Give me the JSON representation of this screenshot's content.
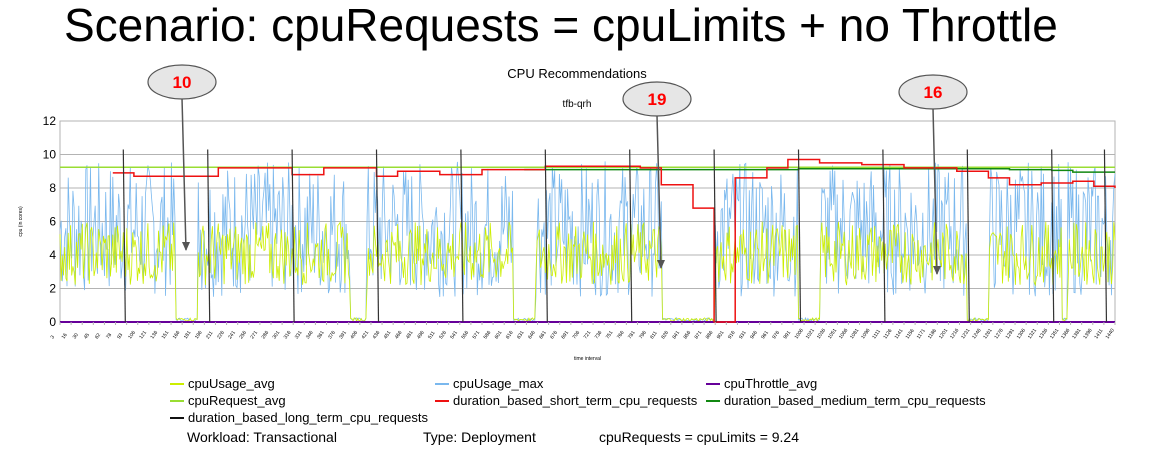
{
  "slide": {
    "title": "Scenario: cpuRequests = cpuLimits + no Throttle",
    "footer": {
      "workload": "Workload: Transactional",
      "type": "Type: Deployment",
      "requests": "cpuRequests = cpuLimits = 9.24"
    }
  },
  "callouts": [
    {
      "label": "10",
      "color": "#ff0000"
    },
    {
      "label": "19",
      "color": "#ff0000"
    },
    {
      "label": "16",
      "color": "#ff0000"
    }
  ],
  "chart_data": {
    "type": "line",
    "title": "CPU Recommendations",
    "subtitle": "tfb-qrh",
    "xlabel": "time interval",
    "ylabel": "cpu (in cores)",
    "ylim": [
      0,
      12
    ],
    "yticks": [
      0,
      2,
      4,
      6,
      8,
      10,
      12
    ],
    "grid": true,
    "legend_position": "bottom",
    "x_tick_labels": [
      "3",
      "16",
      "30",
      "45",
      "62",
      "78",
      "93",
      "106",
      "121",
      "136",
      "151",
      "166",
      "181",
      "196",
      "211",
      "226",
      "241",
      "256",
      "271",
      "286",
      "301",
      "316",
      "331",
      "346",
      "361",
      "376",
      "391",
      "406",
      "421",
      "436",
      "451",
      "466",
      "481",
      "496",
      "511",
      "526",
      "541",
      "556",
      "571",
      "586",
      "601",
      "616",
      "631",
      "646",
      "661",
      "676",
      "691",
      "706",
      "721",
      "736",
      "751",
      "766",
      "781",
      "796",
      "811",
      "826",
      "841",
      "856",
      "871",
      "886",
      "901",
      "916",
      "931",
      "946",
      "961",
      "976",
      "991",
      "1006",
      "1021",
      "1036",
      "1051",
      "1066",
      "1081",
      "1096",
      "1111",
      "1126",
      "1141",
      "1156",
      "1171",
      "1186",
      "1201",
      "1216",
      "1231",
      "1246",
      "1261",
      "1276",
      "1291",
      "1306",
      "1321",
      "1336",
      "1351",
      "1366",
      "1381",
      "1396",
      "1411",
      "1440"
    ],
    "series": [
      {
        "name": "cpuUsage_avg",
        "color": "#ccee00",
        "range": [
          0,
          6
        ]
      },
      {
        "name": "cpuUsage_max",
        "color": "#7ab8ee",
        "range": [
          0,
          9.6
        ]
      },
      {
        "name": "cpuThrottle_avg",
        "color": "#660099",
        "value": 0
      },
      {
        "name": "cpuRequest_avg",
        "color": "#99dd33",
        "value": 9.24
      },
      {
        "name": "duration_based_short_term_cpu_requests",
        "color": "#ee1111",
        "points": [
          [
            0.05,
            8.9
          ],
          [
            0.07,
            8.7
          ],
          [
            0.13,
            8.7
          ],
          [
            0.15,
            9.2
          ],
          [
            0.2,
            9.2
          ],
          [
            0.22,
            8.8
          ],
          [
            0.25,
            9.2
          ],
          [
            0.3,
            8.7
          ],
          [
            0.32,
            9.0
          ],
          [
            0.36,
            8.8
          ],
          [
            0.4,
            9.1
          ],
          [
            0.44,
            9.1
          ],
          [
            0.46,
            9.3
          ],
          [
            0.52,
            9.3
          ],
          [
            0.55,
            9.2
          ],
          [
            0.57,
            8.2
          ],
          [
            0.6,
            6.8
          ],
          [
            0.62,
            0
          ],
          [
            0.63,
            0
          ],
          [
            0.64,
            8.6
          ],
          [
            0.66,
            8.6
          ],
          [
            0.67,
            9.2
          ],
          [
            0.69,
            9.7
          ],
          [
            0.72,
            9.5
          ],
          [
            0.76,
            9.4
          ],
          [
            0.8,
            9.2
          ],
          [
            0.85,
            9.0
          ],
          [
            0.88,
            8.6
          ],
          [
            0.9,
            8.2
          ],
          [
            0.93,
            8.3
          ],
          [
            0.96,
            8.4
          ],
          [
            0.98,
            8.1
          ],
          [
            1.0,
            8.0
          ]
        ]
      },
      {
        "name": "duration_based_medium_term_cpu_requests",
        "color": "#118811",
        "points": [
          [
            0.44,
            9.1
          ],
          [
            0.7,
            9.15
          ],
          [
            0.88,
            9.15
          ],
          [
            0.9,
            9.1
          ],
          [
            0.94,
            9.05
          ],
          [
            0.96,
            8.95
          ],
          [
            1.0,
            8.95
          ]
        ]
      },
      {
        "name": "duration_based_long_term_cpu_requests",
        "color": "#333333",
        "spikes": [
          0.06,
          0.14,
          0.22,
          0.3,
          0.38,
          0.46,
          0.54,
          0.62,
          0.7,
          0.78,
          0.86,
          0.94,
          0.99
        ]
      }
    ]
  }
}
